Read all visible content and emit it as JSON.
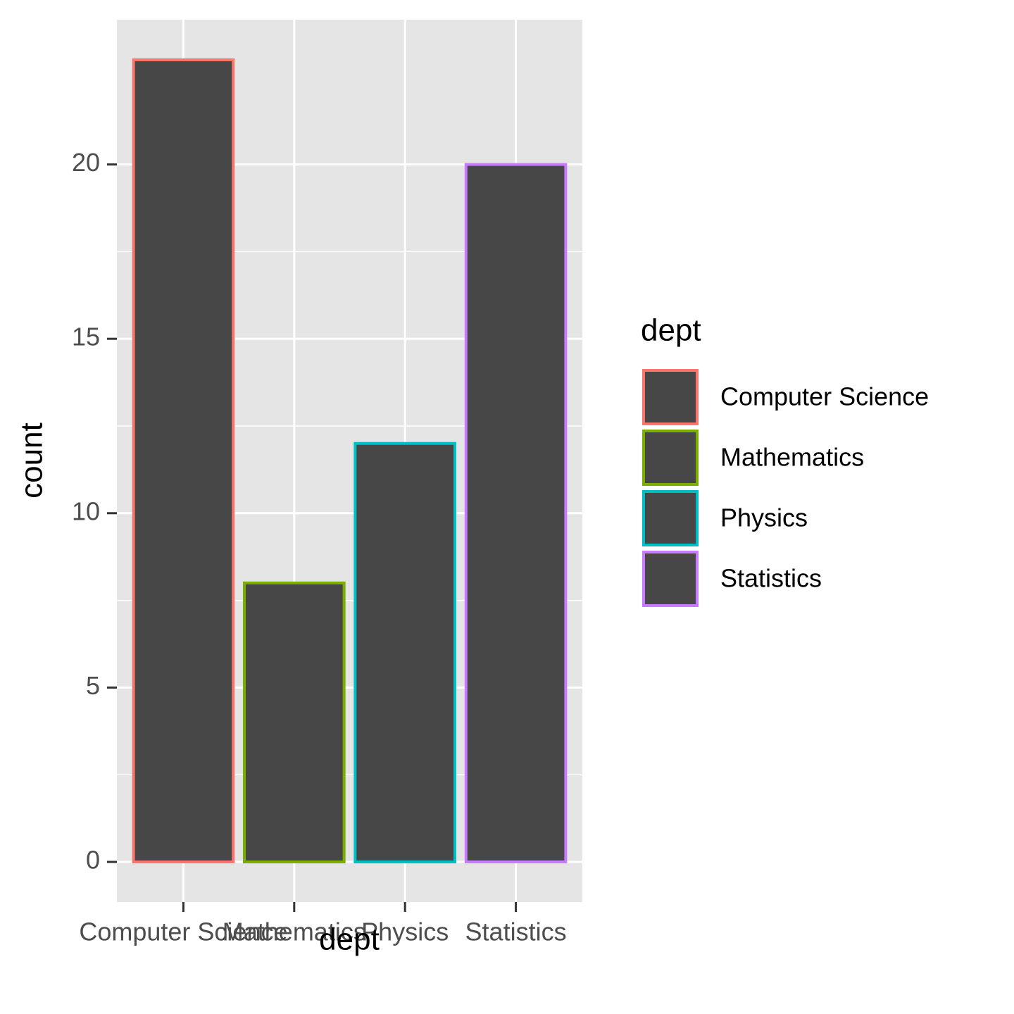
{
  "chart_data": {
    "type": "bar",
    "categories": [
      "Computer Science",
      "Mathematics",
      "Physics",
      "Statistics"
    ],
    "values": [
      23,
      8,
      12,
      20
    ],
    "xlabel": "dept",
    "ylabel": "count",
    "ylim": [
      -1.15,
      24.15
    ],
    "yticks": [
      0,
      5,
      10,
      15,
      20
    ],
    "ytick_labels": [
      "0",
      "5",
      "10",
      "15",
      "20"
    ],
    "grid": true,
    "legend": {
      "title": "dept",
      "position": "right",
      "entries": [
        "Computer Science",
        "Mathematics",
        "Physics",
        "Statistics"
      ]
    },
    "colors": {
      "bar_fill": "#474747",
      "panel_background": "#e5e5e5",
      "grid": "#ffffff",
      "outline": [
        "#f8766d",
        "#7cae00",
        "#00bfc4",
        "#c77cff"
      ]
    }
  }
}
